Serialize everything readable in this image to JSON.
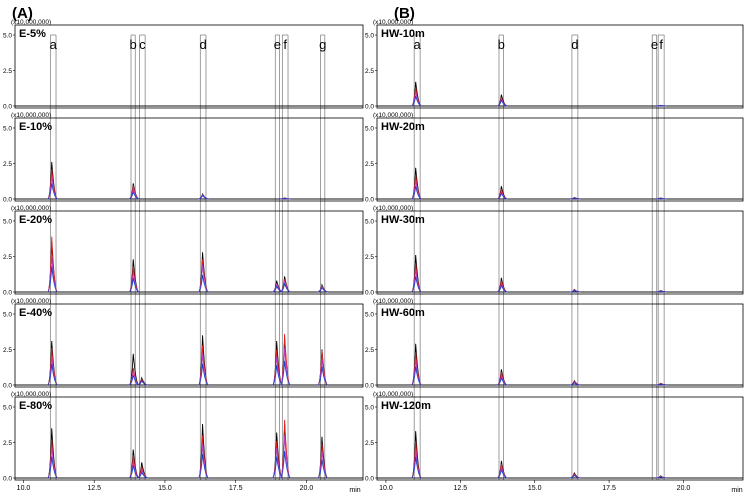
{
  "figure": {
    "labels": [
      "(A)",
      "(B)"
    ],
    "scale_label": "(x10,000,000)",
    "x_unit": "min"
  },
  "chart_data": [
    {
      "type": "line",
      "panel": "(A)",
      "x_ticks": [
        10.0,
        12.5,
        15.0,
        17.5,
        20.0
      ],
      "x_tick_labels": [
        "10.0",
        "12.5",
        "15.0",
        "17.5",
        "20.0"
      ],
      "xlim": [
        9.7,
        22.0
      ],
      "y_ticks": [
        0.0,
        2.5,
        5.0
      ],
      "y_tick_labels": [
        "0.0",
        "2.5",
        "5.0"
      ],
      "ylim": [
        0,
        5.0
      ],
      "peak_windows": [
        {
          "label": "a",
          "from": 10.95,
          "to": 11.15
        },
        {
          "label": "b",
          "from": 13.8,
          "to": 13.95
        },
        {
          "label": "c",
          "from": 14.1,
          "to": 14.3
        },
        {
          "label": "d",
          "from": 16.25,
          "to": 16.45
        },
        {
          "label": "e",
          "from": 18.9,
          "to": 19.05
        },
        {
          "label": "f",
          "from": 19.15,
          "to": 19.35
        },
        {
          "label": "g",
          "from": 20.5,
          "to": 20.65
        }
      ],
      "series_colors": [
        "#000000",
        "#e02020",
        "#c040c0",
        "#1f3fd0"
      ],
      "subplots": [
        {
          "name": "E-5%",
          "peaks": []
        },
        {
          "name": "E-10%",
          "peaks": [
            {
              "rt": 11.02,
              "heights": [
                2.6,
                2.1,
                1.6,
                1.1
              ]
            },
            {
              "rt": 13.9,
              "heights": [
                1.1,
                0.95,
                0.75,
                0.5
              ]
            },
            {
              "rt": 16.35,
              "heights": [
                0.35,
                0.3,
                0.3,
                0.25
              ]
            },
            {
              "rt": 19.25,
              "heights": [
                0.08,
                0.06,
                0.05,
                0.04
              ]
            }
          ]
        },
        {
          "name": "E-20%",
          "peaks": [
            {
              "rt": 11.02,
              "heights": [
                3.5,
                3.9,
                2.5,
                1.8
              ]
            },
            {
              "rt": 13.9,
              "heights": [
                2.3,
                1.8,
                1.4,
                1.0
              ]
            },
            {
              "rt": 16.35,
              "heights": [
                2.8,
                2.3,
                1.9,
                1.2
              ]
            },
            {
              "rt": 18.97,
              "heights": [
                0.8,
                0.6,
                0.6,
                0.4
              ]
            },
            {
              "rt": 19.25,
              "heights": [
                1.1,
                0.9,
                0.8,
                0.6
              ]
            },
            {
              "rt": 20.57,
              "heights": [
                0.5,
                0.4,
                0.4,
                0.3
              ]
            }
          ]
        },
        {
          "name": "E-40%",
          "peaks": [
            {
              "rt": 11.02,
              "heights": [
                3.1,
                2.6,
                2.0,
                1.5
              ]
            },
            {
              "rt": 13.9,
              "heights": [
                2.2,
                1.2,
                1.0,
                0.7
              ]
            },
            {
              "rt": 14.2,
              "heights": [
                0.5,
                0.4,
                0.3,
                0.3
              ]
            },
            {
              "rt": 16.35,
              "heights": [
                3.5,
                2.8,
                2.2,
                1.5
              ]
            },
            {
              "rt": 18.97,
              "heights": [
                3.1,
                2.5,
                2.0,
                1.4
              ]
            },
            {
              "rt": 19.25,
              "heights": [
                3.3,
                3.6,
                2.6,
                1.7
              ]
            },
            {
              "rt": 20.57,
              "heights": [
                2.5,
                2.4,
                1.8,
                1.3
              ]
            }
          ]
        },
        {
          "name": "E-80%",
          "peaks": [
            {
              "rt": 11.02,
              "heights": [
                3.5,
                2.7,
                2.2,
                1.5
              ]
            },
            {
              "rt": 13.9,
              "heights": [
                2.0,
                1.6,
                1.2,
                0.9
              ]
            },
            {
              "rt": 14.2,
              "heights": [
                1.1,
                0.8,
                0.6,
                0.4
              ]
            },
            {
              "rt": 16.35,
              "heights": [
                3.8,
                3.0,
                2.4,
                1.7
              ]
            },
            {
              "rt": 18.97,
              "heights": [
                3.2,
                2.6,
                2.1,
                1.5
              ]
            },
            {
              "rt": 19.25,
              "heights": [
                3.8,
                4.1,
                3.0,
                1.9
              ]
            },
            {
              "rt": 20.57,
              "heights": [
                2.9,
                2.4,
                1.9,
                1.3
              ]
            }
          ]
        }
      ]
    },
    {
      "type": "line",
      "panel": "(B)",
      "x_ticks": [
        10.0,
        12.5,
        15.0,
        17.5,
        20.0
      ],
      "x_tick_labels": [
        "10.0",
        "12.5",
        "15.0",
        "17.5",
        "20.0"
      ],
      "xlim": [
        9.7,
        22.0
      ],
      "y_ticks": [
        0.0,
        2.5,
        5.0
      ],
      "y_tick_labels": [
        "0.0",
        "2.5",
        "5.0"
      ],
      "ylim": [
        0,
        5.0
      ],
      "peak_windows": [
        {
          "label": "a",
          "from": 10.95,
          "to": 11.15
        },
        {
          "label": "b",
          "from": 13.8,
          "to": 13.95
        },
        {
          "label": "d",
          "from": 16.25,
          "to": 16.45
        },
        {
          "label": "e",
          "from": 18.95,
          "to": 19.1
        },
        {
          "label": "f",
          "from": 19.15,
          "to": 19.35
        }
      ],
      "series_colors": [
        "#000000",
        "#e02020",
        "#c040c0",
        "#1f3fd0"
      ],
      "subplots": [
        {
          "name": "HW-10m",
          "peaks": [
            {
              "rt": 11.02,
              "heights": [
                1.7,
                1.3,
                1.0,
                0.7
              ]
            },
            {
              "rt": 13.9,
              "heights": [
                0.8,
                0.6,
                0.5,
                0.4
              ]
            },
            {
              "rt": 19.25,
              "heights": [
                0.05,
                0.04,
                0.04,
                0.03
              ]
            }
          ]
        },
        {
          "name": "HW-20m",
          "peaks": [
            {
              "rt": 11.02,
              "heights": [
                2.2,
                1.7,
                1.3,
                0.9
              ]
            },
            {
              "rt": 13.9,
              "heights": [
                0.9,
                0.7,
                0.5,
                0.4
              ]
            },
            {
              "rt": 16.35,
              "heights": [
                0.1,
                0.08,
                0.07,
                0.06
              ]
            },
            {
              "rt": 19.25,
              "heights": [
                0.08,
                0.06,
                0.05,
                0.04
              ]
            }
          ]
        },
        {
          "name": "HW-30m",
          "peaks": [
            {
              "rt": 11.02,
              "heights": [
                2.6,
                2.0,
                1.6,
                1.1
              ]
            },
            {
              "rt": 13.9,
              "heights": [
                1.0,
                0.8,
                0.6,
                0.45
              ]
            },
            {
              "rt": 16.35,
              "heights": [
                0.18,
                0.15,
                0.12,
                0.1
              ]
            },
            {
              "rt": 19.25,
              "heights": [
                0.1,
                0.08,
                0.07,
                0.05
              ]
            }
          ]
        },
        {
          "name": "HW-60m",
          "peaks": [
            {
              "rt": 11.02,
              "heights": [
                2.9,
                2.3,
                1.8,
                1.3
              ]
            },
            {
              "rt": 13.9,
              "heights": [
                1.1,
                0.9,
                0.7,
                0.5
              ]
            },
            {
              "rt": 16.35,
              "heights": [
                0.3,
                0.25,
                0.2,
                0.15
              ]
            },
            {
              "rt": 19.25,
              "heights": [
                0.12,
                0.1,
                0.08,
                0.06
              ]
            }
          ]
        },
        {
          "name": "HW-120m",
          "peaks": [
            {
              "rt": 11.02,
              "heights": [
                3.3,
                2.6,
                2.0,
                1.5
              ]
            },
            {
              "rt": 13.9,
              "heights": [
                1.2,
                1.0,
                0.8,
                0.6
              ]
            },
            {
              "rt": 16.35,
              "heights": [
                0.35,
                0.28,
                0.22,
                0.18
              ]
            },
            {
              "rt": 19.25,
              "heights": [
                0.15,
                0.12,
                0.1,
                0.08
              ]
            }
          ]
        }
      ]
    }
  ]
}
